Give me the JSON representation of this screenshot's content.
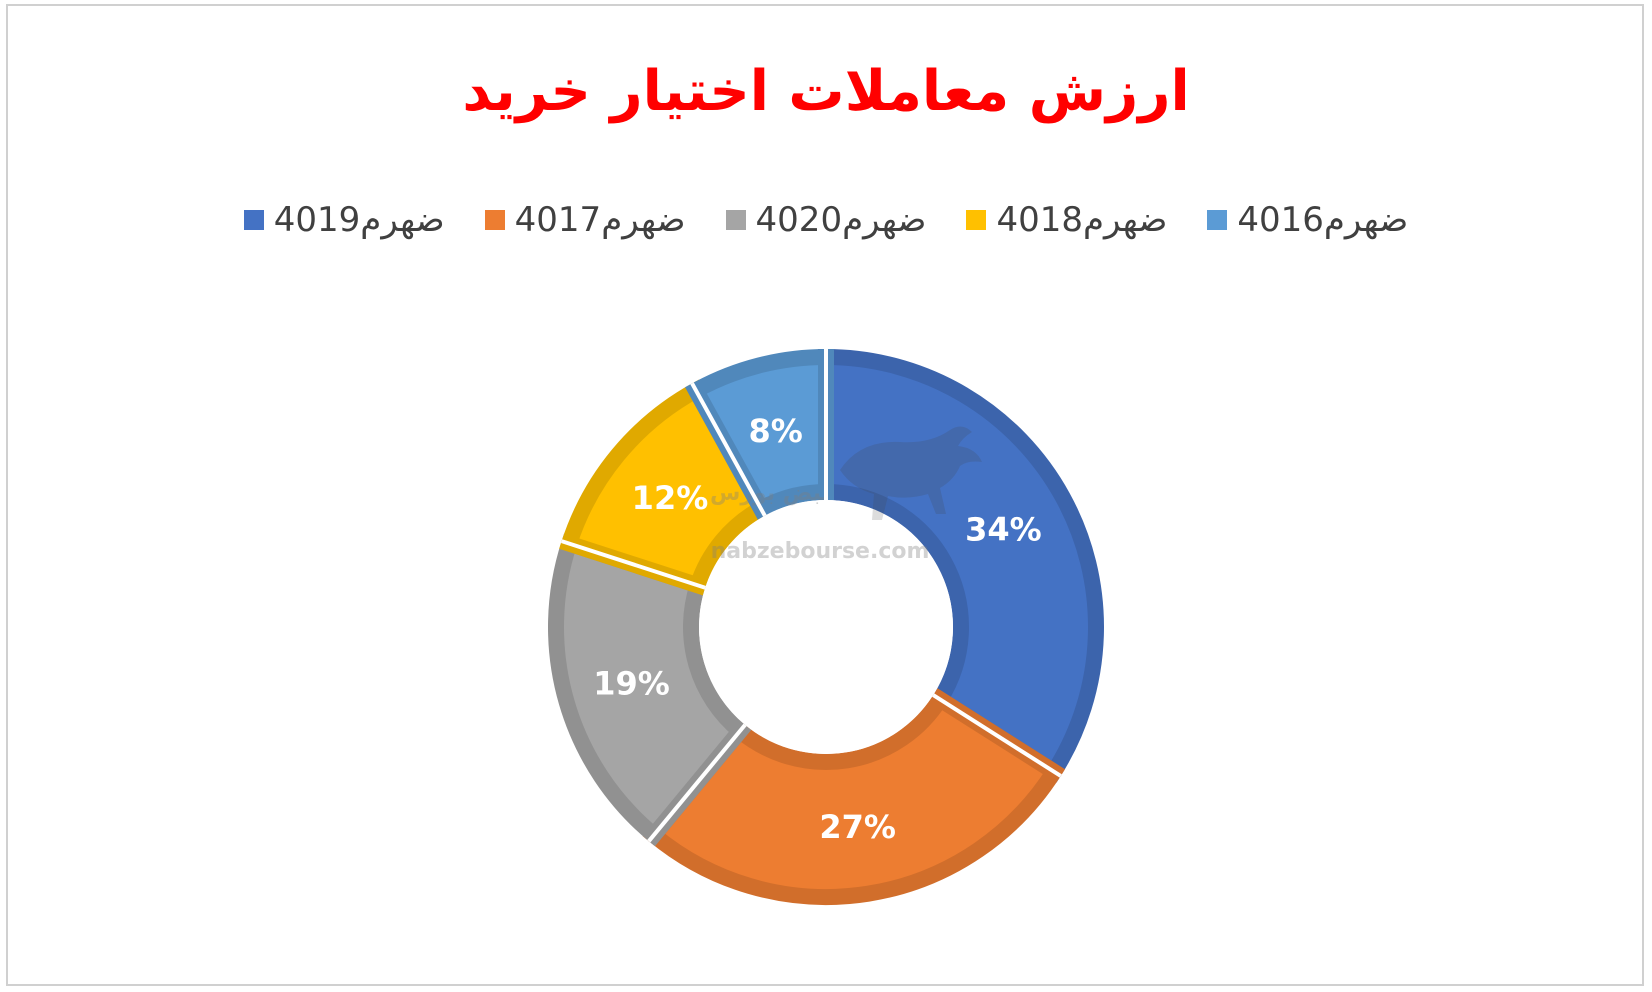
{
  "chart_data": {
    "type": "pie",
    "variant": "doughnut",
    "title": "ارزش معاملات اختیار خرید",
    "legend_position": "top",
    "slices": [
      {
        "name": "ضهرم4019",
        "value": 34,
        "label": "34%",
        "color": "#4472C4"
      },
      {
        "name": "ضهرم4017",
        "value": 27,
        "label": "27%",
        "color": "#ED7D31"
      },
      {
        "name": "ضهرم4020",
        "value": 19,
        "label": "19%",
        "color": "#A5A5A5"
      },
      {
        "name": "ضهرم4018",
        "value": 12,
        "label": "12%",
        "color": "#FFC000"
      },
      {
        "name": "ضهرم4016",
        "value": 8,
        "label": "8%",
        "color": "#5B9BD5"
      }
    ]
  },
  "watermark": {
    "url_text": "nabzebourse.com",
    "logo_text": "نبض بورس",
    "icon": "bull-icon"
  }
}
